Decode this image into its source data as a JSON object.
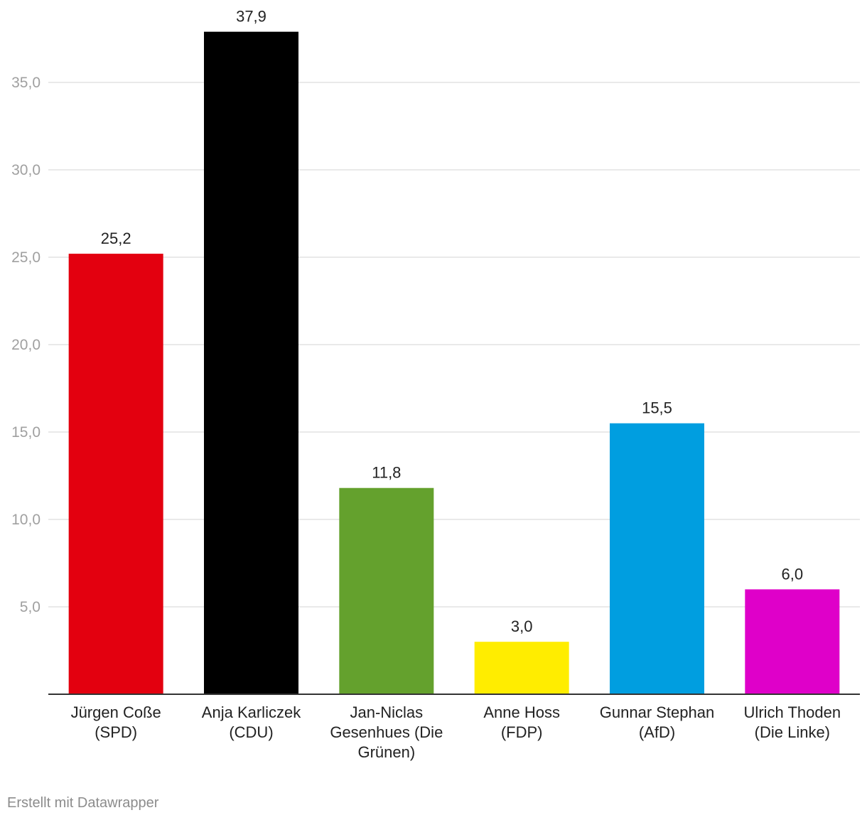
{
  "chart_data": {
    "type": "bar",
    "title": "",
    "xlabel": "",
    "ylabel": "",
    "categories": [
      [
        "Jürgen Coße",
        "(SPD)"
      ],
      [
        "Anja Karliczek",
        "(CDU)"
      ],
      [
        "Jan-Niclas",
        "Gesenhues (Die",
        "Grünen)"
      ],
      [
        "Anne Hoss",
        "(FDP)"
      ],
      [
        "Gunnar Stephan",
        "(AfD)"
      ],
      [
        "Ulrich Thoden",
        "(Die Linke)"
      ]
    ],
    "values": [
      25.2,
      37.9,
      11.8,
      3.0,
      15.5,
      6.0
    ],
    "value_labels": [
      "25,2",
      "37,9",
      "11,8",
      "3,0",
      "15,5",
      "6,0"
    ],
    "colors": [
      "#e3000f",
      "#000000",
      "#64a12d",
      "#ffed00",
      "#009ee0",
      "#df00c9"
    ],
    "y_ticks": [
      5,
      10,
      15,
      20,
      25,
      30,
      35
    ],
    "y_tick_labels": [
      "5,0",
      "10,0",
      "15,0",
      "20,0",
      "25,0",
      "30,0",
      "35,0"
    ],
    "ylim": [
      0,
      40
    ],
    "grid": true,
    "legend": "none"
  },
  "footer": {
    "credit": "Erstellt mit Datawrapper"
  }
}
